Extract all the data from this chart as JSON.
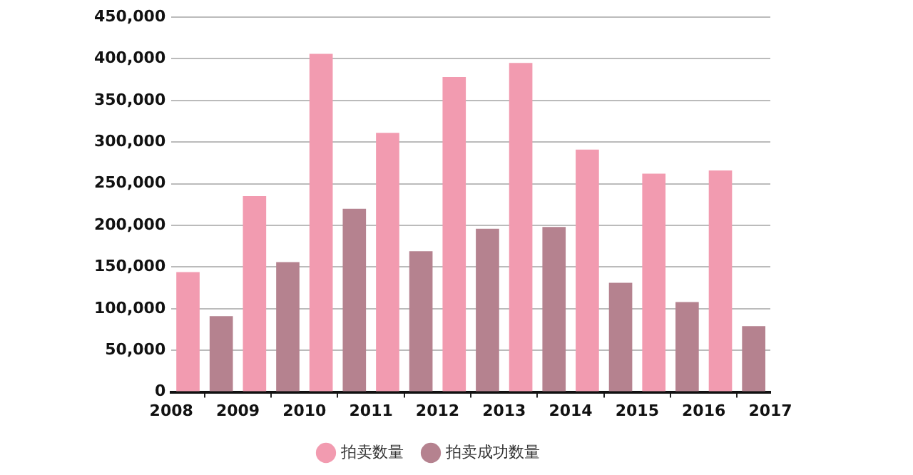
{
  "chart_data": {
    "type": "bar",
    "x": [
      2008.5,
      2009.5,
      2010.5,
      2011.5,
      2012.5,
      2013.5,
      2014.5,
      2015.5,
      2016.5
    ],
    "xlim": [
      2008,
      2017
    ],
    "xticks": [
      2008,
      2009,
      2010,
      2011,
      2012,
      2013,
      2014,
      2015,
      2016,
      2017
    ],
    "ylim": [
      0,
      450000
    ],
    "yticks": [
      0,
      {
        "value": 50000,
        "label": "50,000"
      },
      {
        "value": 100000,
        "label": "100,000"
      },
      {
        "value": 150000,
        "label": "150,000"
      },
      {
        "value": 200000,
        "label": "200,000"
      },
      {
        "value": 250000,
        "label": "250,000"
      },
      {
        "value": 300000,
        "label": "300,000"
      },
      {
        "value": 350000,
        "label": "350,000"
      },
      {
        "value": 400000,
        "label": "400,000"
      },
      {
        "value": 450000,
        "label": "450,000"
      }
    ],
    "series": [
      {
        "name": "拍卖数量",
        "color": "#f29bb0",
        "values": [
          144000,
          235000,
          406000,
          311000,
          378000,
          395000,
          291000,
          262000,
          266000
        ]
      },
      {
        "name": "拍卖成功数量",
        "color": "#b5828f",
        "values": [
          91000,
          156000,
          220000,
          169000,
          196000,
          198000,
          131000,
          108000,
          79000
        ]
      }
    ],
    "grid": "y",
    "legend": "bottom"
  }
}
